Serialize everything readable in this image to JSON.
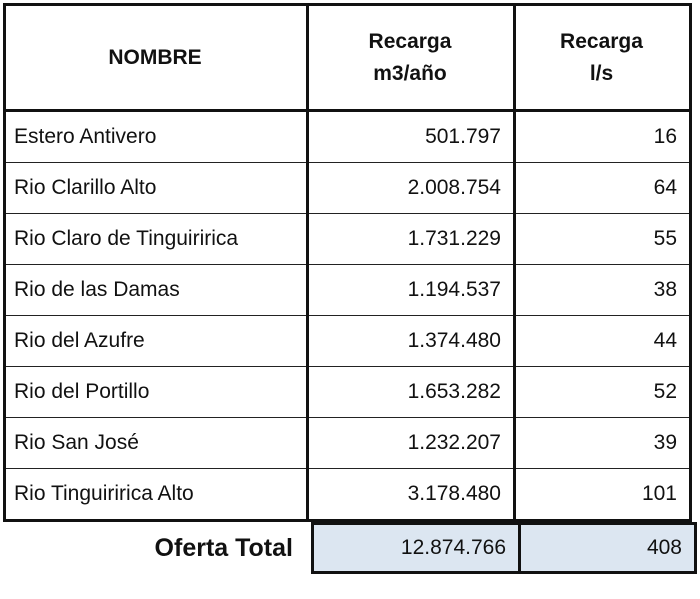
{
  "headers": {
    "name": "NOMBRE",
    "m3_line1": "Recarga",
    "m3_line2": "m3/año",
    "ls_line1": "Recarga",
    "ls_line2": "l/s"
  },
  "rows": [
    {
      "name": "Estero Antivero",
      "m3": "501.797",
      "ls": "16"
    },
    {
      "name": "Rio Clarillo Alto",
      "m3": "2.008.754",
      "ls": "64"
    },
    {
      "name": "Rio Claro de Tinguiririca",
      "m3": "1.731.229",
      "ls": "55"
    },
    {
      "name": "Rio de las Damas",
      "m3": "1.194.537",
      "ls": "38"
    },
    {
      "name": "Rio del Azufre",
      "m3": "1.374.480",
      "ls": "44"
    },
    {
      "name": "Rio del Portillo",
      "m3": "1.653.282",
      "ls": "52"
    },
    {
      "name": "Rio San José",
      "m3": "1.232.207",
      "ls": "39"
    },
    {
      "name": "Rio Tinguiririca Alto",
      "m3": "3.178.480",
      "ls": "101"
    }
  ],
  "total": {
    "label": "Oferta Total",
    "m3": "12.874.766",
    "ls": "408"
  },
  "colors": {
    "total_fill": "#dce6f1"
  }
}
